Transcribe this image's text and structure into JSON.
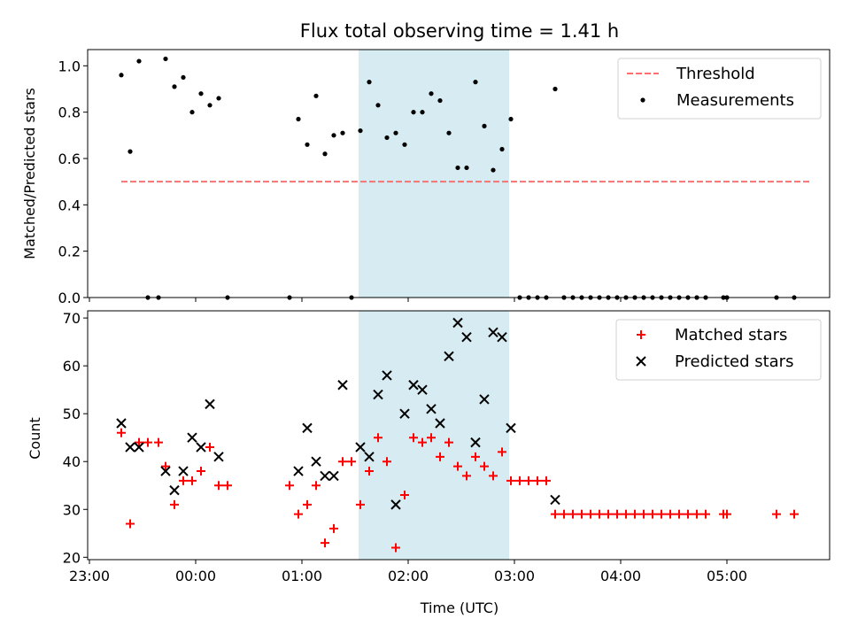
{
  "title": "Flux total observing time = 1.41 h",
  "chart_data": [
    {
      "type": "scatter",
      "ylabel": "Matched/Predicted stars",
      "xlabel": "",
      "xlim": [
        "22:59",
        "05:58"
      ],
      "ylim": [
        0,
        1.07
      ],
      "xticks": [
        "23:00",
        "00:00",
        "01:00",
        "02:00",
        "03:00",
        "04:00",
        "05:00"
      ],
      "yticks": [
        "0.0",
        "0.2",
        "0.4",
        "0.6",
        "0.8",
        "1.0"
      ],
      "shaded_interval": [
        "01:32",
        "02:57"
      ],
      "legend": {
        "placement": "top-right",
        "entries": [
          "Threshold",
          "Measurements"
        ]
      },
      "threshold": {
        "name": "Threshold",
        "value": 0.5,
        "x_range": [
          "23:18",
          "05:47"
        ],
        "color": "#ff6f6f",
        "style": "dashed"
      },
      "series": [
        {
          "name": "Measurements",
          "color": "#000000",
          "marker": "dot",
          "points": [
            [
              "23:18",
              0.96
            ],
            [
              "23:23",
              0.63
            ],
            [
              "23:28",
              1.02
            ],
            [
              "23:33",
              0.0
            ],
            [
              "23:39",
              0.0
            ],
            [
              "23:43",
              1.03
            ],
            [
              "23:48",
              0.91
            ],
            [
              "23:53",
              0.95
            ],
            [
              "23:58",
              0.8
            ],
            [
              "00:03",
              0.88
            ],
            [
              "00:08",
              0.83
            ],
            [
              "00:13",
              0.86
            ],
            [
              "00:18",
              0.0
            ],
            [
              "00:53",
              0.0
            ],
            [
              "00:58",
              0.77
            ],
            [
              "01:03",
              0.66
            ],
            [
              "01:08",
              0.87
            ],
            [
              "01:13",
              0.62
            ],
            [
              "01:18",
              0.7
            ],
            [
              "01:23",
              0.71
            ],
            [
              "01:28",
              0.0
            ],
            [
              "01:33",
              0.72
            ],
            [
              "01:38",
              0.93
            ],
            [
              "01:43",
              0.83
            ],
            [
              "01:48",
              0.69
            ],
            [
              "01:53",
              0.71
            ],
            [
              "01:58",
              0.66
            ],
            [
              "02:03",
              0.8
            ],
            [
              "02:08",
              0.8
            ],
            [
              "02:13",
              0.88
            ],
            [
              "02:18",
              0.85
            ],
            [
              "02:23",
              0.71
            ],
            [
              "02:28",
              0.56
            ],
            [
              "02:33",
              0.56
            ],
            [
              "02:38",
              0.93
            ],
            [
              "02:43",
              0.74
            ],
            [
              "02:48",
              0.55
            ],
            [
              "02:53",
              0.64
            ],
            [
              "02:58",
              0.77
            ],
            [
              "03:03",
              0.0
            ],
            [
              "03:08",
              0.0
            ],
            [
              "03:13",
              0.0
            ],
            [
              "03:18",
              0.0
            ],
            [
              "03:23",
              0.9
            ],
            [
              "03:28",
              0.0
            ],
            [
              "03:33",
              0.0
            ],
            [
              "03:38",
              0.0
            ],
            [
              "03:43",
              0.0
            ],
            [
              "03:48",
              0.0
            ],
            [
              "03:53",
              0.0
            ],
            [
              "03:58",
              0.0
            ],
            [
              "04:03",
              0.0
            ],
            [
              "04:08",
              0.0
            ],
            [
              "04:13",
              0.0
            ],
            [
              "04:18",
              0.0
            ],
            [
              "04:23",
              0.0
            ],
            [
              "04:28",
              0.0
            ],
            [
              "04:33",
              0.0
            ],
            [
              "04:38",
              0.0
            ],
            [
              "04:43",
              0.0
            ],
            [
              "04:48",
              0.0
            ],
            [
              "04:58",
              0.0
            ],
            [
              "05:00",
              0.0
            ],
            [
              "05:28",
              0.0
            ],
            [
              "05:38",
              0.0
            ]
          ]
        }
      ]
    },
    {
      "type": "scatter",
      "ylabel": "Count",
      "xlabel": "Time (UTC)",
      "xlim": [
        "22:59",
        "05:58"
      ],
      "ylim": [
        19.5,
        71.5
      ],
      "xticks": [
        "23:00",
        "00:00",
        "01:00",
        "02:00",
        "03:00",
        "04:00",
        "05:00"
      ],
      "yticks": [
        "20",
        "30",
        "40",
        "50",
        "60",
        "70"
      ],
      "shaded_interval": [
        "01:32",
        "02:57"
      ],
      "legend": {
        "placement": "top-right",
        "entries": [
          "Matched stars",
          "Predicted stars"
        ]
      },
      "series": [
        {
          "name": "Matched stars",
          "color": "#ff0000",
          "marker": "plus",
          "points": [
            [
              "23:18",
              46
            ],
            [
              "23:23",
              27
            ],
            [
              "23:28",
              44
            ],
            [
              "23:33",
              44
            ],
            [
              "23:39",
              44
            ],
            [
              "23:43",
              39
            ],
            [
              "23:48",
              31
            ],
            [
              "23:53",
              36
            ],
            [
              "23:58",
              36
            ],
            [
              "00:03",
              38
            ],
            [
              "00:08",
              43
            ],
            [
              "00:13",
              35
            ],
            [
              "00:18",
              35
            ],
            [
              "00:53",
              35
            ],
            [
              "00:58",
              29
            ],
            [
              "01:03",
              31
            ],
            [
              "01:08",
              35
            ],
            [
              "01:13",
              23
            ],
            [
              "01:18",
              26
            ],
            [
              "01:23",
              40
            ],
            [
              "01:28",
              40
            ],
            [
              "01:33",
              31
            ],
            [
              "01:38",
              38
            ],
            [
              "01:43",
              45
            ],
            [
              "01:48",
              40
            ],
            [
              "01:53",
              22
            ],
            [
              "01:58",
              33
            ],
            [
              "02:03",
              45
            ],
            [
              "02:08",
              44
            ],
            [
              "02:13",
              45
            ],
            [
              "02:18",
              41
            ],
            [
              "02:23",
              44
            ],
            [
              "02:28",
              39
            ],
            [
              "02:33",
              37
            ],
            [
              "02:38",
              41
            ],
            [
              "02:43",
              39
            ],
            [
              "02:48",
              37
            ],
            [
              "02:53",
              42
            ],
            [
              "02:58",
              36
            ],
            [
              "03:03",
              36
            ],
            [
              "03:08",
              36
            ],
            [
              "03:13",
              36
            ],
            [
              "03:18",
              36
            ],
            [
              "03:23",
              29
            ],
            [
              "03:28",
              29
            ],
            [
              "03:33",
              29
            ],
            [
              "03:38",
              29
            ],
            [
              "03:43",
              29
            ],
            [
              "03:48",
              29
            ],
            [
              "03:53",
              29
            ],
            [
              "03:58",
              29
            ],
            [
              "04:03",
              29
            ],
            [
              "04:08",
              29
            ],
            [
              "04:13",
              29
            ],
            [
              "04:18",
              29
            ],
            [
              "04:23",
              29
            ],
            [
              "04:28",
              29
            ],
            [
              "04:33",
              29
            ],
            [
              "04:38",
              29
            ],
            [
              "04:43",
              29
            ],
            [
              "04:48",
              29
            ],
            [
              "04:58",
              29
            ],
            [
              "05:00",
              29
            ],
            [
              "05:28",
              29
            ],
            [
              "05:38",
              29
            ]
          ]
        },
        {
          "name": "Predicted stars",
          "color": "#000000",
          "marker": "x",
          "points": [
            [
              "23:18",
              48
            ],
            [
              "23:23",
              43
            ],
            [
              "23:28",
              43
            ],
            [
              "23:43",
              38
            ],
            [
              "23:48",
              34
            ],
            [
              "23:53",
              38
            ],
            [
              "23:58",
              45
            ],
            [
              "00:03",
              43
            ],
            [
              "00:08",
              52
            ],
            [
              "00:13",
              41
            ],
            [
              "00:58",
              38
            ],
            [
              "01:03",
              47
            ],
            [
              "01:08",
              40
            ],
            [
              "01:13",
              37
            ],
            [
              "01:18",
              37
            ],
            [
              "01:23",
              56
            ],
            [
              "01:33",
              43
            ],
            [
              "01:38",
              41
            ],
            [
              "01:43",
              54
            ],
            [
              "01:48",
              58
            ],
            [
              "01:53",
              31
            ],
            [
              "01:58",
              50
            ],
            [
              "02:03",
              56
            ],
            [
              "02:08",
              55
            ],
            [
              "02:13",
              51
            ],
            [
              "02:18",
              48
            ],
            [
              "02:23",
              62
            ],
            [
              "02:28",
              69
            ],
            [
              "02:33",
              66
            ],
            [
              "02:38",
              44
            ],
            [
              "02:43",
              53
            ],
            [
              "02:48",
              67
            ],
            [
              "02:53",
              66
            ],
            [
              "02:58",
              47
            ],
            [
              "03:23",
              32
            ]
          ]
        }
      ]
    }
  ]
}
